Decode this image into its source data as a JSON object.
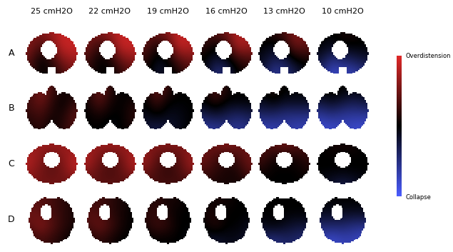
{
  "chart_data": {
    "type": "heatmap",
    "columns": [
      "25 cmH2O",
      "22 cmH2O",
      "19 cmH2O",
      "16 cmH2O",
      "13 cmH2O",
      "10 cmH2O"
    ],
    "rows": [
      {
        "label": "A",
        "cells": [
          [
            [
              0.5,
              0.6,
              0.7,
              0.9,
              0.8
            ],
            [
              0.6,
              0.3,
              0.5,
              0.9,
              0.9
            ],
            [
              0.4,
              0.0,
              0.2,
              0.6,
              0.7
            ],
            [
              0.3,
              0.0,
              0.1,
              0.3,
              0.5
            ]
          ],
          [
            [
              0.5,
              0.6,
              0.7,
              0.9,
              0.8
            ],
            [
              0.5,
              0.2,
              0.4,
              0.9,
              0.9
            ],
            [
              0.3,
              0.0,
              0.1,
              0.5,
              0.6
            ],
            [
              0.2,
              0.0,
              0.0,
              0.2,
              0.4
            ]
          ],
          [
            [
              0.4,
              0.5,
              0.6,
              0.9,
              0.8
            ],
            [
              0.4,
              0.1,
              0.3,
              0.9,
              0.8
            ],
            [
              0.2,
              -0.1,
              0.0,
              0.4,
              0.5
            ],
            [
              0.1,
              -0.2,
              -0.1,
              0.1,
              0.3
            ]
          ],
          [
            [
              0.3,
              0.4,
              0.5,
              0.8,
              0.7
            ],
            [
              0.2,
              0.0,
              0.2,
              0.8,
              0.7
            ],
            [
              0.0,
              -0.2,
              -0.1,
              0.2,
              0.3
            ],
            [
              0.0,
              -0.5,
              -0.4,
              0.0,
              0.1
            ]
          ],
          [
            [
              0.1,
              0.2,
              0.3,
              0.6,
              0.5
            ],
            [
              0.0,
              -0.1,
              0.1,
              0.5,
              0.4
            ],
            [
              -0.1,
              -0.3,
              -0.3,
              0.0,
              0.1
            ],
            [
              -0.2,
              -0.6,
              -0.5,
              -0.3,
              -0.1
            ]
          ],
          [
            [
              0.0,
              0.0,
              0.1,
              0.1,
              0.0
            ],
            [
              0.0,
              -0.1,
              0.0,
              0.0,
              0.0
            ],
            [
              -0.2,
              -0.5,
              -0.4,
              -0.3,
              -0.2
            ],
            [
              -0.4,
              -0.8,
              -0.7,
              -0.7,
              -0.5
            ]
          ]
        ]
      },
      {
        "label": "B",
        "cells": [
          [
            [
              0.2,
              0.6,
              0.3,
              0.1,
              0.1
            ],
            [
              0.3,
              0.5,
              0.2,
              0.0,
              0.2
            ],
            [
              0.2,
              0.3,
              0.1,
              0.1,
              0.4
            ],
            [
              0.1,
              0.2,
              0.0,
              0.2,
              0.3
            ]
          ],
          [
            [
              0.1,
              0.5,
              0.2,
              0.0,
              0.0
            ],
            [
              0.1,
              0.4,
              0.1,
              0.0,
              0.1
            ],
            [
              0.0,
              0.1,
              0.0,
              0.0,
              0.2
            ],
            [
              0.0,
              0.0,
              -0.1,
              0.0,
              0.1
            ]
          ],
          [
            [
              0.1,
              0.5,
              0.2,
              0.0,
              0.0
            ],
            [
              0.0,
              0.3,
              0.0,
              0.0,
              0.0
            ],
            [
              -0.1,
              0.0,
              -0.1,
              -0.1,
              0.0
            ],
            [
              -0.2,
              -0.3,
              -0.2,
              -0.1,
              0.0
            ]
          ],
          [
            [
              0.0,
              0.4,
              0.1,
              0.0,
              0.0
            ],
            [
              0.0,
              0.2,
              0.0,
              0.0,
              0.0
            ],
            [
              -0.3,
              -0.2,
              -0.3,
              -0.4,
              -0.3
            ],
            [
              -0.6,
              -0.6,
              -0.5,
              -0.6,
              -0.5
            ]
          ],
          [
            [
              0.0,
              0.2,
              0.0,
              0.0,
              0.0
            ],
            [
              -0.1,
              0.0,
              -0.1,
              -0.1,
              -0.1
            ],
            [
              -0.4,
              -0.4,
              -0.5,
              -0.5,
              -0.5
            ],
            [
              -0.7,
              -0.7,
              -0.6,
              -0.7,
              -0.7
            ]
          ],
          [
            [
              0.0,
              0.1,
              0.0,
              0.0,
              0.0
            ],
            [
              -0.2,
              -0.1,
              -0.2,
              -0.3,
              -0.2
            ],
            [
              -0.6,
              -0.5,
              -0.6,
              -0.6,
              -0.6
            ],
            [
              -0.8,
              -0.8,
              -0.7,
              -0.8,
              -0.8
            ]
          ]
        ]
      },
      {
        "label": "C",
        "cells": [
          [
            [
              0.6,
              0.7,
              0.7,
              0.7,
              0.6
            ],
            [
              0.8,
              0.6,
              0.4,
              0.6,
              0.8
            ],
            [
              0.7,
              0.5,
              0.4,
              0.5,
              0.8
            ],
            [
              0.5,
              0.5,
              0.5,
              0.5,
              0.4
            ]
          ],
          [
            [
              0.6,
              0.7,
              0.7,
              0.7,
              0.6
            ],
            [
              0.8,
              0.5,
              0.4,
              0.5,
              0.8
            ],
            [
              0.6,
              0.4,
              0.3,
              0.4,
              0.7
            ],
            [
              0.4,
              0.4,
              0.4,
              0.4,
              0.3
            ]
          ],
          [
            [
              0.5,
              0.6,
              0.6,
              0.6,
              0.5
            ],
            [
              0.7,
              0.4,
              0.3,
              0.4,
              0.7
            ],
            [
              0.5,
              0.3,
              0.2,
              0.3,
              0.6
            ],
            [
              0.3,
              0.3,
              0.3,
              0.3,
              0.2
            ]
          ],
          [
            [
              0.4,
              0.5,
              0.6,
              0.5,
              0.4
            ],
            [
              0.5,
              0.3,
              0.2,
              0.3,
              0.5
            ],
            [
              0.3,
              0.2,
              0.1,
              0.1,
              0.4
            ],
            [
              0.2,
              0.1,
              0.1,
              0.1,
              0.1
            ]
          ],
          [
            [
              0.3,
              0.4,
              0.5,
              0.4,
              0.3
            ],
            [
              0.3,
              0.1,
              0.1,
              0.1,
              0.2
            ],
            [
              0.1,
              0.0,
              0.0,
              0.0,
              0.1
            ],
            [
              0.0,
              0.0,
              0.0,
              0.0,
              0.0
            ]
          ],
          [
            [
              0.0,
              0.1,
              0.1,
              0.1,
              0.0
            ],
            [
              0.0,
              0.0,
              0.0,
              0.0,
              0.0
            ],
            [
              0.0,
              0.0,
              0.0,
              0.0,
              0.0
            ],
            [
              -0.1,
              -0.2,
              -0.3,
              -0.2,
              -0.1
            ]
          ]
        ]
      },
      {
        "label": "D",
        "cells": [
          [
            [
              0.3,
              0.4,
              0.3,
              0.2,
              0.1
            ],
            [
              0.5,
              0.4,
              0.3,
              0.2,
              0.1
            ],
            [
              0.4,
              0.6,
              0.4,
              0.2,
              0.1
            ],
            [
              0.2,
              0.3,
              0.2,
              0.1,
              0.0
            ]
          ],
          [
            [
              0.2,
              0.3,
              0.2,
              0.1,
              0.1
            ],
            [
              0.4,
              0.3,
              0.2,
              0.1,
              0.0
            ],
            [
              0.3,
              0.5,
              0.3,
              0.1,
              0.0
            ],
            [
              0.1,
              0.2,
              0.1,
              0.0,
              0.0
            ]
          ],
          [
            [
              0.1,
              0.2,
              0.1,
              0.1,
              0.0
            ],
            [
              0.2,
              0.2,
              0.1,
              0.0,
              0.0
            ],
            [
              0.1,
              0.3,
              0.2,
              0.0,
              0.0
            ],
            [
              0.0,
              0.0,
              0.0,
              0.0,
              -0.1
            ]
          ],
          [
            [
              0.0,
              0.1,
              0.1,
              0.0,
              0.0
            ],
            [
              0.1,
              0.1,
              0.0,
              0.0,
              0.0
            ],
            [
              0.0,
              0.2,
              0.0,
              0.0,
              -0.1
            ],
            [
              -0.1,
              -0.2,
              -0.1,
              -0.1,
              -0.2
            ]
          ],
          [
            [
              0.0,
              0.0,
              0.0,
              0.0,
              0.0
            ],
            [
              0.0,
              0.0,
              0.0,
              0.0,
              0.0
            ],
            [
              -0.1,
              0.0,
              -0.1,
              -0.2,
              -0.2
            ],
            [
              -0.4,
              -0.5,
              -0.4,
              -0.4,
              -0.5
            ]
          ],
          [
            [
              0.0,
              0.0,
              0.0,
              0.0,
              0.0
            ],
            [
              -0.1,
              -0.1,
              -0.1,
              -0.1,
              -0.1
            ],
            [
              -0.4,
              -0.4,
              -0.4,
              -0.5,
              -0.5
            ],
            [
              -0.7,
              -0.8,
              -0.7,
              -0.7,
              -0.8
            ]
          ]
        ]
      }
    ],
    "colorbar": {
      "range": [
        -1,
        1
      ],
      "ticks": [
        {
          "value": 1,
          "label": "Overdistension"
        },
        {
          "value": -1,
          "label": "Collapse"
        }
      ],
      "colors": [
        "#4a5cff",
        "#000000",
        "#e02828"
      ]
    }
  }
}
